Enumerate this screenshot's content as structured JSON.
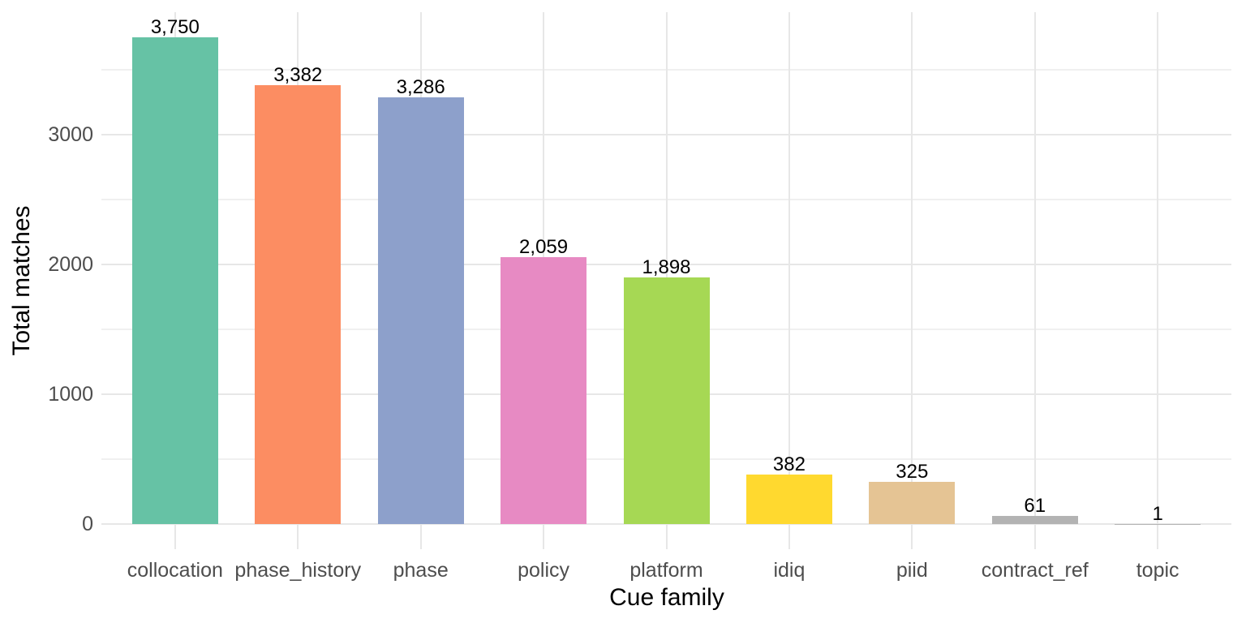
{
  "chart_data": {
    "type": "bar",
    "title": "",
    "xlabel": "Cue family",
    "ylabel": "Total matches",
    "categories": [
      "collocation",
      "phase_history",
      "phase",
      "policy",
      "platform",
      "idiq",
      "piid",
      "contract_ref",
      "topic"
    ],
    "values": [
      3750,
      3382,
      3286,
      2059,
      1898,
      382,
      325,
      61,
      1
    ],
    "value_labels": [
      "3,750",
      "3,382",
      "3,286",
      "2,059",
      "1,898",
      "382",
      "325",
      "61",
      "1"
    ],
    "bar_colors": [
      "#66C2A5",
      "#FC8D62",
      "#8DA0CB",
      "#E78AC3",
      "#A6D854",
      "#FFD92F",
      "#E5C494",
      "#B3B3B3",
      "#B3B3B3"
    ],
    "y_ticks": [
      0,
      1000,
      2000,
      3000
    ],
    "y_tick_labels": [
      "0",
      "1000",
      "2000",
      "3000"
    ],
    "y_minor_ticks": [
      500,
      1500,
      2500,
      3500
    ],
    "ylim": [
      -190,
      3940
    ],
    "grid": "on",
    "legend": "none",
    "colors": {
      "background": "#FFFFFF",
      "grid_major": "#E7E7E7",
      "grid_minor": "#F0F0F0",
      "axis_text": "#4D4D4D",
      "axis_title": "#000000",
      "value_label": "#000000"
    }
  }
}
